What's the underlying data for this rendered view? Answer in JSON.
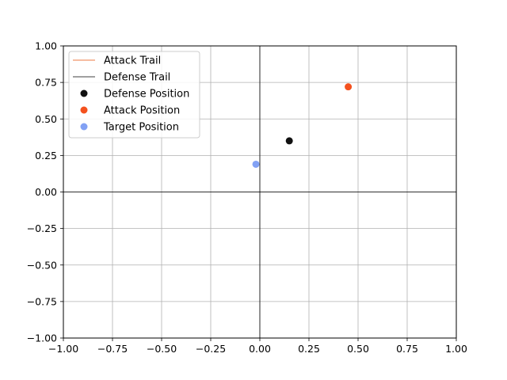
{
  "chart_data": {
    "type": "scatter",
    "title": "",
    "xlabel": "",
    "ylabel": "",
    "xlim": [
      -1.0,
      1.0
    ],
    "ylim": [
      -1.0,
      1.0
    ],
    "grid": true,
    "axis_lines_at_zero": true,
    "x_ticks": [
      -1.0,
      -0.75,
      -0.5,
      -0.25,
      0.0,
      0.25,
      0.5,
      0.75,
      1.0
    ],
    "y_ticks": [
      -1.0,
      -0.75,
      -0.5,
      -0.25,
      0.0,
      0.25,
      0.5,
      0.75,
      1.0
    ],
    "x_tick_labels": [
      "−1.00",
      "−0.75",
      "−0.50",
      "−0.25",
      "0.00",
      "0.25",
      "0.50",
      "0.75",
      "1.00"
    ],
    "y_tick_labels": [
      "−1.00",
      "−0.75",
      "−0.50",
      "−0.25",
      "0.00",
      "0.25",
      "0.50",
      "0.75",
      "1.00"
    ],
    "legend_position": "top-left",
    "legend": [
      {
        "label": "Attack Trail",
        "kind": "line",
        "color": "#f4a582"
      },
      {
        "label": "Defense Trail",
        "kind": "line",
        "color": "#808080"
      },
      {
        "label": "Defense Position",
        "kind": "marker",
        "color": "#111111"
      },
      {
        "label": "Attack Position",
        "kind": "marker",
        "color": "#f4511e"
      },
      {
        "label": "Target Position",
        "kind": "marker",
        "color": "#82a1f4"
      }
    ],
    "series": [
      {
        "name": "Defense Position",
        "color": "#111111",
        "points": [
          {
            "x": 0.15,
            "y": 0.35
          }
        ]
      },
      {
        "name": "Attack Position",
        "color": "#f4511e",
        "points": [
          {
            "x": 0.45,
            "y": 0.72
          }
        ]
      },
      {
        "name": "Target Position",
        "color": "#82a1f4",
        "points": [
          {
            "x": -0.02,
            "y": 0.19
          }
        ]
      }
    ]
  }
}
